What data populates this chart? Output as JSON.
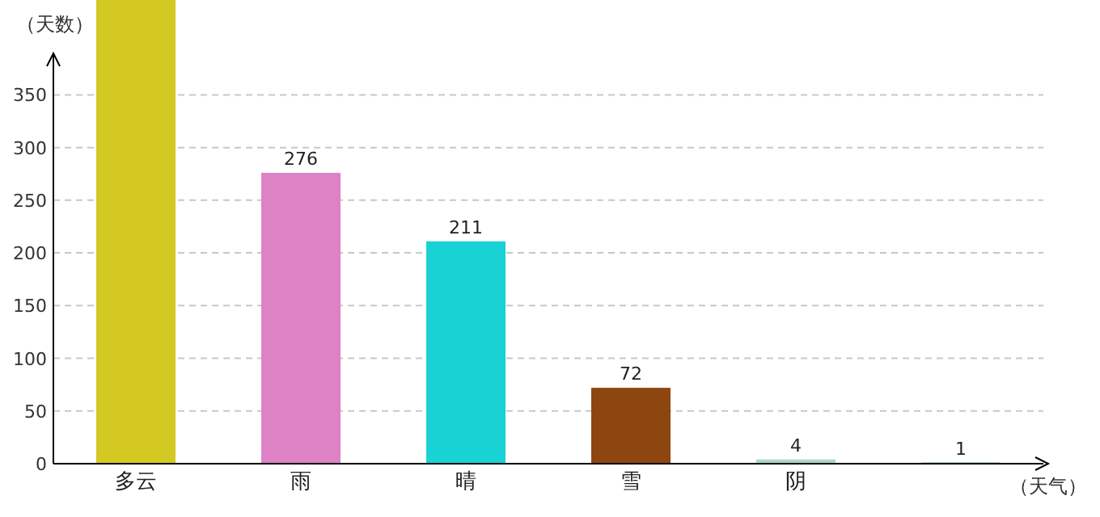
{
  "chart_data": {
    "type": "bar",
    "xlabel": "（天气）",
    "ylabel": "（天数）",
    "categories": [
      "多云",
      "雨",
      "晴",
      "雪",
      "阴",
      null
    ],
    "values": [
      440,
      276,
      211,
      72,
      4,
      1
    ],
    "colors": [
      "#d4c922",
      "#de82c6",
      "#19d2d4",
      "#8e4611",
      "#a8d8c4",
      "#1e8a55"
    ],
    "value_labels": [
      null,
      "276",
      "211",
      "72",
      "4",
      "1"
    ],
    "ylim": [
      0,
      440
    ],
    "yticks": [
      0,
      50,
      100,
      150,
      200,
      250,
      300,
      350
    ],
    "grid": "y"
  }
}
